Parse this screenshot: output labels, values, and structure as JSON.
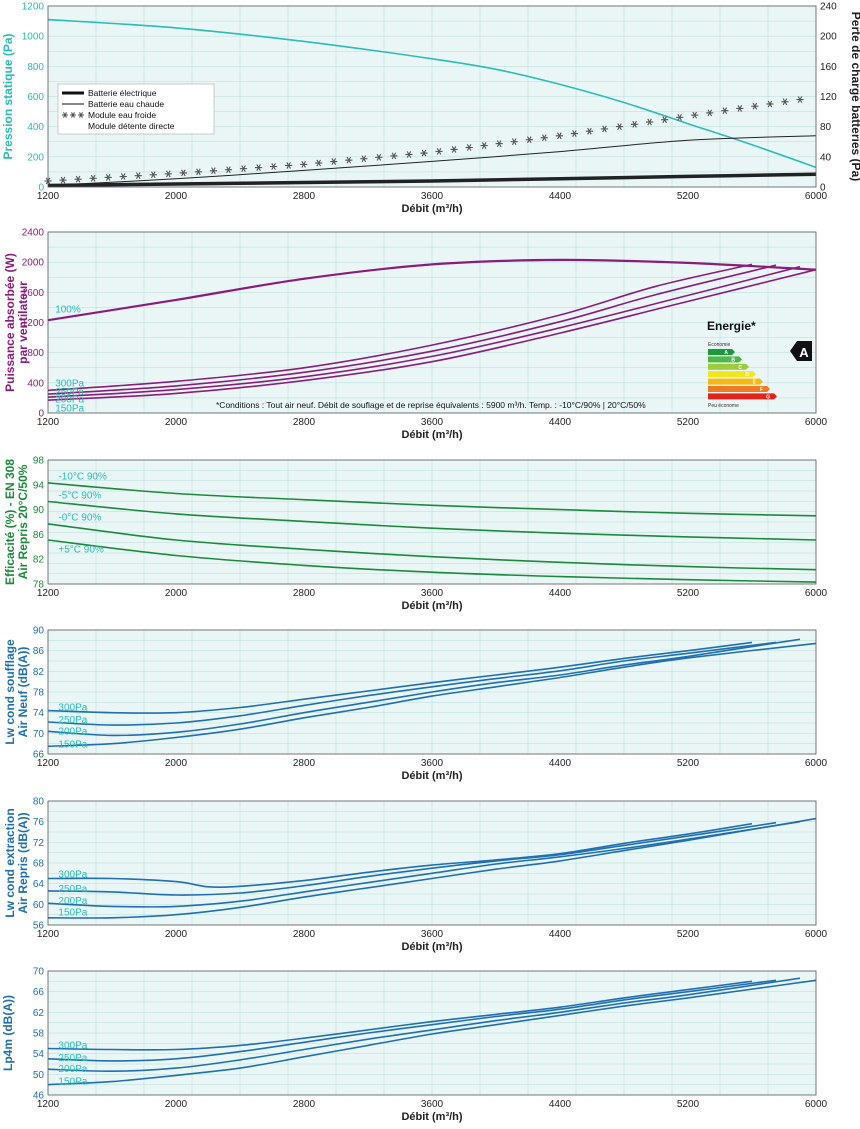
{
  "chart_data": [
    {
      "type": "line",
      "ylabel": "Pression statique (Pa)",
      "y2label": "Perte de charge batteries (Pa)",
      "xlabel": "Débit (m³/h)",
      "x_ticks": [
        1200,
        2000,
        2800,
        3600,
        4400,
        5200,
        6000
      ],
      "ylim": [
        0,
        1200
      ],
      "y_ticks": [
        0,
        200,
        400,
        600,
        800,
        1000,
        1200
      ],
      "y2lim": [
        0,
        240
      ],
      "y2_ticks": [
        0,
        40,
        80,
        120,
        160,
        200,
        240
      ],
      "xlim": [
        1200,
        6000
      ],
      "grid": true,
      "legend": {
        "position": "left",
        "items": [
          {
            "label": "Batterie électrique",
            "style": "thick"
          },
          {
            "label": "Batterie eau chaude",
            "style": "thin"
          },
          {
            "label": "Module eau froide",
            "style": "snowflake"
          },
          {
            "label": "Module détente directe",
            "style": "none"
          }
        ]
      },
      "series": [
        {
          "axis": "y",
          "color": "#2bbcb6",
          "x": [
            1200,
            2000,
            2800,
            3600,
            4000,
            4400,
            4800,
            5200,
            5600,
            6000
          ],
          "y": [
            1110,
            1055,
            965,
            850,
            780,
            680,
            560,
            420,
            280,
            130
          ]
        },
        {
          "axis": "y2",
          "color": "#222222",
          "width": 3.5,
          "x": [
            1200,
            2000,
            2800,
            3600,
            4400,
            5200,
            6000
          ],
          "y": [
            2,
            4,
            6,
            8,
            11,
            14,
            17
          ]
        },
        {
          "axis": "y2",
          "color": "#222222",
          "width": 1,
          "x": [
            1200,
            2000,
            2800,
            3600,
            4400,
            5200,
            6000
          ],
          "y": [
            2,
            11,
            22,
            34,
            47,
            62,
            68
          ]
        },
        {
          "axis": "y2",
          "color": "#555555",
          "marker": "snowflake",
          "x": [
            1200,
            2000,
            2800,
            3600,
            4400,
            5200,
            5900
          ],
          "y": [
            8,
            18,
            30,
            46,
            68,
            94,
            116
          ]
        }
      ]
    },
    {
      "type": "line",
      "ylabel": "Puissance absorbée (W) par ventilateur",
      "xlabel": "Débit (m³/h)",
      "x_ticks": [
        1200,
        2000,
        2800,
        3600,
        4400,
        5200,
        6000
      ],
      "ylim": [
        0,
        2400
      ],
      "y_ticks": [
        0,
        400,
        800,
        1200,
        1600,
        2000,
        2400
      ],
      "xlim": [
        1200,
        6000
      ],
      "grid": true,
      "note": "*Conditions : Tout air neuf. Débit de souflage et de reprise équivalents : 5900 m³/h. Temp. : -10°C/90% | 20°C/50%",
      "energy": {
        "title": "Energie*",
        "top": "Economie",
        "bottom": "Peu économe",
        "letters": [
          "A",
          "B",
          "C",
          "D",
          "E",
          "F",
          "G"
        ],
        "colors": [
          "#1a9a3c",
          "#4cb847",
          "#9ccb3b",
          "#f1e51d",
          "#f7b716",
          "#ee7a22",
          "#e2231a"
        ],
        "rating": "A"
      },
      "series": [
        {
          "name": "100%",
          "color": "#8a1c7c",
          "width": 2.2,
          "x": [
            1200,
            2000,
            2800,
            3600,
            4400,
            5200,
            6000
          ],
          "y": [
            1230,
            1500,
            1780,
            1970,
            2030,
            1990,
            1900
          ]
        },
        {
          "name": "300Pa",
          "color": "#8a1c7c",
          "x": [
            1200,
            2000,
            2800,
            3600,
            4400,
            5000,
            5600
          ],
          "y": [
            300,
            420,
            600,
            900,
            1300,
            1680,
            1970
          ]
        },
        {
          "name": "250Pa",
          "color": "#8a1c7c",
          "x": [
            1200,
            2000,
            2800,
            3600,
            4400,
            5000,
            5750
          ],
          "y": [
            250,
            360,
            540,
            820,
            1210,
            1570,
            1960
          ]
        },
        {
          "name": "200Pa",
          "color": "#8a1c7c",
          "x": [
            1200,
            2000,
            2800,
            3600,
            4400,
            5200,
            5900
          ],
          "y": [
            210,
            310,
            480,
            750,
            1130,
            1560,
            1940
          ]
        },
        {
          "name": "150Pa",
          "color": "#8a1c7c",
          "x": [
            1200,
            2000,
            2800,
            3600,
            4400,
            5200,
            6000
          ],
          "y": [
            170,
            260,
            430,
            680,
            1060,
            1480,
            1900
          ]
        }
      ],
      "series_labels": [
        {
          "text": "100%",
          "x": 1220,
          "y": 1370
        },
        {
          "text": "300Pa",
          "x": 1220,
          "y": 390
        },
        {
          "text": "250Pa",
          "x": 1220,
          "y": 280
        },
        {
          "text": "200Pa",
          "x": 1220,
          "y": 180
        },
        {
          "text": "150Pa",
          "x": 1220,
          "y": 60
        }
      ]
    },
    {
      "type": "line",
      "ylabel": "Efficacité (%) - EN 308 Air Repris 20°C/50%",
      "xlabel": "Débit (m³/h)",
      "x_ticks": [
        1200,
        2000,
        2800,
        3600,
        4400,
        5200,
        6000
      ],
      "ylim": [
        78,
        98
      ],
      "y_ticks": [
        78,
        82,
        86,
        90,
        94,
        98
      ],
      "xlim": [
        1200,
        6000
      ],
      "grid": true,
      "series": [
        {
          "name": "-10°C 90%",
          "color": "#1c8a3c",
          "x": [
            1200,
            2000,
            2800,
            3600,
            4400,
            5200,
            6000
          ],
          "y": [
            94.3,
            92.6,
            91.6,
            90.7,
            90.0,
            89.4,
            89.0
          ]
        },
        {
          "name": "-5°C 90%",
          "color": "#1c8a3c",
          "x": [
            1200,
            2000,
            2800,
            3600,
            4400,
            5200,
            6000
          ],
          "y": [
            91.3,
            89.3,
            88.1,
            87.0,
            86.2,
            85.6,
            85.1
          ]
        },
        {
          "name": "-0°C 90%",
          "color": "#1c8a3c",
          "x": [
            1200,
            2000,
            2800,
            3600,
            4400,
            5200,
            6000
          ],
          "y": [
            87.7,
            85.1,
            83.6,
            82.4,
            81.5,
            80.8,
            80.3
          ]
        },
        {
          "name": "+5°C 90%",
          "color": "#1c8a3c",
          "x": [
            1200,
            2000,
            2800,
            3600,
            4400,
            5200,
            6000
          ],
          "y": [
            85.1,
            82.6,
            81.0,
            79.9,
            79.2,
            78.7,
            78.3
          ]
        }
      ],
      "series_labels": [
        {
          "text": "-10°C 90%",
          "x": 1240,
          "y": 95.3
        },
        {
          "text": "-5°C 90%",
          "x": 1240,
          "y": 92.3
        },
        {
          "text": "-0°C 90%",
          "x": 1240,
          "y": 88.7
        },
        {
          "text": "+5°C 90%",
          "x": 1240,
          "y": 83.6
        }
      ]
    },
    {
      "type": "line",
      "ylabel": "Lw cond soufflage Air Neuf (dB(A))",
      "xlabel": "Débit (m³/h)",
      "x_ticks": [
        1200,
        2000,
        2800,
        3600,
        4400,
        5200,
        6000
      ],
      "ylim": [
        66,
        90
      ],
      "y_ticks": [
        66,
        70,
        74,
        78,
        82,
        86,
        90
      ],
      "xlim": [
        1200,
        6000
      ],
      "grid": true,
      "series": [
        {
          "name": "300Pa",
          "color": "#1f6fb2",
          "x": [
            1200,
            1600,
            2000,
            2400,
            2800,
            3200,
            3600,
            4000,
            4400,
            4800,
            5200,
            5600
          ],
          "y": [
            74.4,
            74.0,
            74.0,
            75.0,
            76.6,
            78.2,
            79.8,
            81.3,
            82.8,
            84.5,
            86.0,
            87.6
          ]
        },
        {
          "name": "250Pa",
          "color": "#1f6fb2",
          "x": [
            1200,
            1600,
            2000,
            2400,
            2800,
            3200,
            3600,
            4000,
            4400,
            4800,
            5200,
            5750
          ],
          "y": [
            72.2,
            71.6,
            72.0,
            73.4,
            75.4,
            77.3,
            79.0,
            80.6,
            82.1,
            84.0,
            85.5,
            87.6
          ]
        },
        {
          "name": "200Pa",
          "color": "#1f6fb2",
          "x": [
            1200,
            1600,
            2000,
            2400,
            2800,
            3200,
            3600,
            4000,
            4400,
            4800,
            5200,
            5900
          ],
          "y": [
            70.4,
            69.6,
            70.2,
            71.8,
            74.0,
            76.0,
            78.0,
            79.8,
            81.3,
            83.2,
            84.9,
            88.2
          ]
        },
        {
          "name": "150Pa",
          "color": "#1f6fb2",
          "x": [
            1200,
            1600,
            2000,
            2400,
            2800,
            3200,
            3600,
            4000,
            4400,
            4800,
            5200,
            6000
          ],
          "y": [
            67.5,
            68.0,
            69.2,
            70.8,
            73.0,
            75.0,
            77.2,
            79.0,
            80.8,
            82.8,
            84.6,
            87.4
          ]
        }
      ],
      "series_labels": [
        {
          "text": "300Pa",
          "x": 1240,
          "y": 75.0
        },
        {
          "text": "250Pa",
          "x": 1240,
          "y": 72.6
        },
        {
          "text": "200Pa",
          "x": 1240,
          "y": 70.4
        },
        {
          "text": "150Pa",
          "x": 1240,
          "y": 67.8
        }
      ]
    },
    {
      "type": "line",
      "ylabel": "Lw cond extraction Air Repris (dB(A))",
      "xlabel": "Débit (m³/h)",
      "x_ticks": [
        1200,
        2000,
        2800,
        3600,
        4400,
        5200,
        6000
      ],
      "ylim": [
        56,
        80
      ],
      "y_ticks": [
        56,
        60,
        64,
        68,
        72,
        76,
        80
      ],
      "xlim": [
        1200,
        6000
      ],
      "grid": true,
      "series": [
        {
          "name": "300Pa",
          "color": "#1f6fb2",
          "x": [
            1200,
            1600,
            2000,
            2200,
            2400,
            2800,
            3200,
            3600,
            4000,
            4400,
            4800,
            5200,
            5600
          ],
          "y": [
            65.0,
            65.0,
            64.4,
            63.4,
            63.5,
            64.6,
            66.2,
            67.6,
            68.6,
            69.8,
            71.8,
            73.6,
            75.6
          ]
        },
        {
          "name": "250Pa",
          "color": "#1f6fb2",
          "x": [
            1200,
            1600,
            2000,
            2400,
            2800,
            3200,
            3600,
            4000,
            4400,
            4800,
            5200,
            5750
          ],
          "y": [
            62.6,
            62.4,
            61.8,
            62.2,
            63.6,
            65.4,
            67.0,
            68.4,
            69.6,
            71.4,
            73.2,
            75.8
          ]
        },
        {
          "name": "200Pa",
          "color": "#1f6fb2",
          "x": [
            1200,
            1600,
            2000,
            2400,
            2800,
            3200,
            3600,
            4000,
            4400,
            4800,
            5200,
            5900
          ],
          "y": [
            60.2,
            59.6,
            59.6,
            60.6,
            62.4,
            64.2,
            66.0,
            67.8,
            69.2,
            70.8,
            72.6,
            76.0
          ]
        },
        {
          "name": "150Pa",
          "color": "#1f6fb2",
          "x": [
            1200,
            1600,
            2000,
            2400,
            2800,
            3200,
            3600,
            4000,
            4400,
            4800,
            5200,
            6000
          ],
          "y": [
            57.4,
            57.4,
            58.0,
            59.4,
            61.4,
            63.2,
            65.0,
            66.8,
            68.4,
            70.4,
            72.4,
            76.6
          ]
        }
      ],
      "series_labels": [
        {
          "text": "300Pa",
          "x": 1240,
          "y": 65.8
        },
        {
          "text": "250Pa",
          "x": 1240,
          "y": 63.0
        },
        {
          "text": "200Pa",
          "x": 1240,
          "y": 60.6
        },
        {
          "text": "150Pa",
          "x": 1240,
          "y": 58.4
        }
      ]
    },
    {
      "type": "line",
      "ylabel": "Lp4m (dB(A))",
      "xlabel": "Débit (m³/h)",
      "x_ticks": [
        1200,
        2000,
        2800,
        3600,
        4400,
        5200,
        6000
      ],
      "ylim": [
        46,
        70
      ],
      "y_ticks": [
        46,
        50,
        54,
        58,
        62,
        66,
        70
      ],
      "xlim": [
        1200,
        6000
      ],
      "grid": true,
      "series": [
        {
          "name": "300Pa",
          "color": "#1f6fb2",
          "x": [
            1200,
            1600,
            2000,
            2400,
            2800,
            3200,
            3600,
            4000,
            4400,
            4800,
            5200,
            5600
          ],
          "y": [
            55.0,
            54.8,
            54.8,
            55.6,
            57.0,
            58.6,
            60.2,
            61.6,
            63.0,
            64.8,
            66.4,
            68.0
          ]
        },
        {
          "name": "250Pa",
          "color": "#1f6fb2",
          "x": [
            1200,
            1600,
            2000,
            2400,
            2800,
            3200,
            3600,
            4000,
            4400,
            4800,
            5200,
            5750
          ],
          "y": [
            53.0,
            52.6,
            53.0,
            54.4,
            56.2,
            58.0,
            59.6,
            61.2,
            62.6,
            64.4,
            66.0,
            68.2
          ]
        },
        {
          "name": "200Pa",
          "color": "#1f6fb2",
          "x": [
            1200,
            1600,
            2000,
            2400,
            2800,
            3200,
            3600,
            4000,
            4400,
            4800,
            5200,
            5900
          ],
          "y": [
            51.0,
            50.6,
            51.2,
            52.8,
            54.8,
            56.8,
            58.6,
            60.4,
            62.0,
            63.8,
            65.4,
            68.6
          ]
        },
        {
          "name": "150Pa",
          "color": "#1f6fb2",
          "x": [
            1200,
            1600,
            2000,
            2400,
            2800,
            3200,
            3600,
            4000,
            4400,
            4800,
            5200,
            6000
          ],
          "y": [
            48.0,
            48.6,
            49.8,
            51.2,
            53.4,
            55.6,
            57.8,
            59.6,
            61.4,
            63.2,
            64.8,
            68.2
          ]
        }
      ],
      "series_labels": [
        {
          "text": "300Pa",
          "x": 1240,
          "y": 55.6
        },
        {
          "text": "250Pa",
          "x": 1240,
          "y": 53.2
        },
        {
          "text": "200Pa",
          "x": 1240,
          "y": 51.0
        },
        {
          "text": "150Pa",
          "x": 1240,
          "y": 48.6
        }
      ]
    }
  ],
  "panel_styles": [
    {
      "ylabel_color": "#2bbcb6",
      "tick_color": "#2bbcb6"
    },
    {
      "ylabel_color": "#8a1c7c",
      "tick_color": "#8a1c7c",
      "label_color": "#2bbcb6"
    },
    {
      "ylabel_color": "#1c8a3c",
      "tick_color": "#1c8a3c",
      "label_color": "#2bbcb6"
    },
    {
      "ylabel_color": "#1f6fb2",
      "tick_color": "#1f6fb2",
      "label_color": "#2bbcb6"
    },
    {
      "ylabel_color": "#1f6fb2",
      "tick_color": "#1f6fb2",
      "label_color": "#2bbcb6"
    },
    {
      "ylabel_color": "#1f6fb2",
      "tick_color": "#1f6fb2",
      "label_color": "#2bbcb6"
    }
  ],
  "colors": {
    "plot_bg": "#e9f6f5",
    "grid": "#b5dcd9",
    "frame": "#555555"
  }
}
